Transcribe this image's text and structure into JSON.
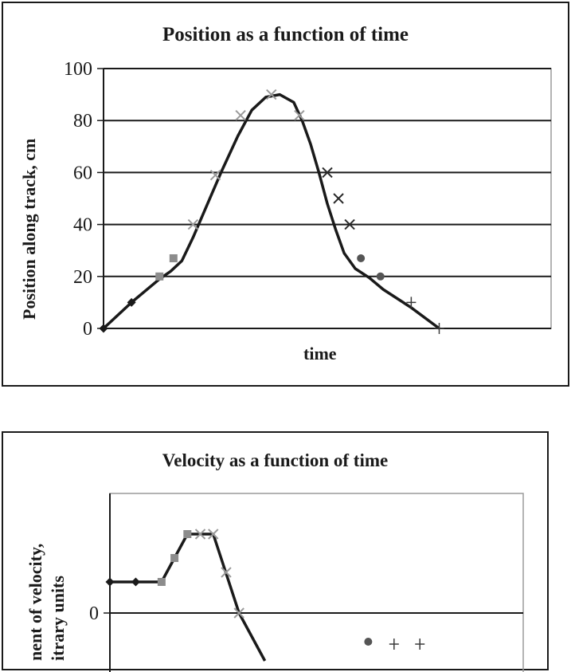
{
  "chart_data": [
    {
      "type": "line",
      "title": "Position as a function of time",
      "xlabel": "time",
      "ylabel": "Position along track, cm",
      "ylim": [
        0,
        100
      ],
      "yticks": [
        "0",
        "20",
        "40",
        "60",
        "80",
        "100"
      ],
      "grid": "horizontal",
      "legend": "none",
      "curve": {
        "x": [
          0,
          1,
          2,
          2.4,
          2.8,
          3.2,
          3.6,
          4.2,
          4.8,
          5.3,
          5.8,
          6.3,
          6.8,
          7.1,
          7.4,
          7.7,
          8.0,
          8.3,
          8.6,
          9.0,
          9.5,
          10,
          11,
          12
        ],
        "y": [
          0,
          10,
          19,
          22,
          26,
          35,
          45,
          60,
          74,
          84,
          89,
          90,
          87,
          80,
          71,
          60,
          48,
          38,
          29,
          23,
          19.5,
          15,
          8,
          0
        ]
      },
      "series": [
        {
          "name": "",
          "marker": "diamond",
          "x": [
            0,
            1
          ],
          "y": [
            0,
            10
          ]
        },
        {
          "name": "",
          "marker": "square",
          "x": [
            2,
            2.5
          ],
          "y": [
            20,
            27
          ]
        },
        {
          "name": "",
          "marker": "x-light",
          "x": [
            3.2,
            4.0,
            4.9,
            6.0,
            7.0
          ],
          "y": [
            40,
            59,
            82,
            90,
            82
          ]
        },
        {
          "name": "",
          "marker": "x-dark",
          "x": [
            8.0,
            8.4,
            8.8
          ],
          "y": [
            60,
            50,
            40
          ]
        },
        {
          "name": "",
          "marker": "circle",
          "x": [
            9.2,
            9.9
          ],
          "y": [
            27,
            20
          ]
        },
        {
          "name": "",
          "marker": "plus",
          "x": [
            11,
            12
          ],
          "y": [
            10,
            0
          ]
        }
      ]
    },
    {
      "type": "line",
      "title": "Velocity as a function of time",
      "xlabel": "",
      "ylabel": "x-component of velocity, arbitrary units",
      "ylabel_visible_lines": [
        "nent of velocity,",
        "itrary units"
      ],
      "ylim": [
        -3,
        5
      ],
      "yticks": [
        "0"
      ],
      "grid": "zero line",
      "legend": "none",
      "curve": {
        "x": [
          0,
          1,
          2,
          3,
          4,
          5,
          6
        ],
        "y": [
          1.3,
          1.3,
          1.3,
          3.3,
          3.3,
          0,
          -2
        ]
      },
      "series": [
        {
          "name": "",
          "marker": "diamond",
          "x": [
            0,
            1
          ],
          "y": [
            1.3,
            1.3
          ]
        },
        {
          "name": "",
          "marker": "square",
          "x": [
            2,
            2.5,
            3
          ],
          "y": [
            1.3,
            2.3,
            3.3
          ]
        },
        {
          "name": "",
          "marker": "x-light",
          "x": [
            3.5,
            4.0,
            4.5,
            5.0
          ],
          "y": [
            3.3,
            3.3,
            1.7,
            0
          ]
        },
        {
          "name": "",
          "marker": "circle",
          "x": [
            10
          ],
          "y": [
            -1.2
          ]
        },
        {
          "name": "",
          "marker": "plus",
          "x": [
            11,
            12
          ],
          "y": [
            -1.3,
            -1.3
          ]
        }
      ]
    }
  ]
}
